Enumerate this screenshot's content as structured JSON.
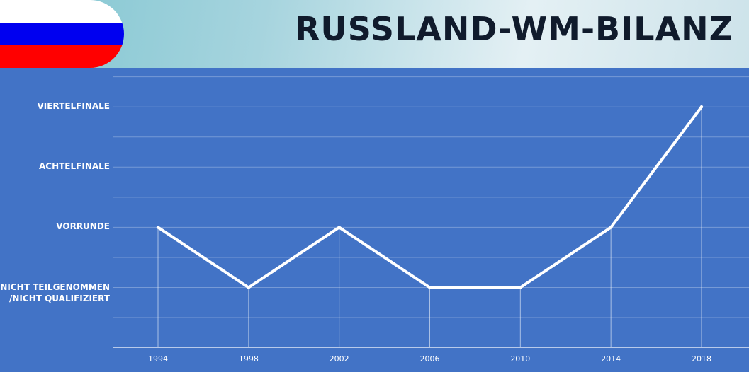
{
  "header": {
    "title": "RUSSLAND-WM-BILANZ",
    "flag_colors": [
      "#ffffff",
      "#0000f0",
      "#ff0000"
    ]
  },
  "colors": {
    "background": "#4273c6",
    "line": "#ffffff",
    "title": "#101b2c"
  },
  "chart_data": {
    "type": "line",
    "title": "RUSSLAND-WM-BILANZ",
    "x": [
      "1994",
      "1998",
      "2002",
      "2006",
      "2010",
      "2014",
      "2018"
    ],
    "y_categories": [
      "Nicht teilgenommen /nicht qualifiziert",
      "Vorrunde",
      "Achtelfinale",
      "Viertelfinale"
    ],
    "y_labels": [
      [
        "NICHT TEILGENOMMEN",
        "/NICHT QUALIFIZIERT"
      ],
      [
        "VORRUNDE"
      ],
      [
        "ACHTELFINALE"
      ],
      [
        "VIERTELFINALE"
      ]
    ],
    "series": [
      {
        "values": [
          1,
          0,
          1,
          0,
          0,
          1,
          3
        ]
      }
    ],
    "ylim": [
      -0.5,
      3.5
    ],
    "grid": true,
    "legend": "none"
  }
}
